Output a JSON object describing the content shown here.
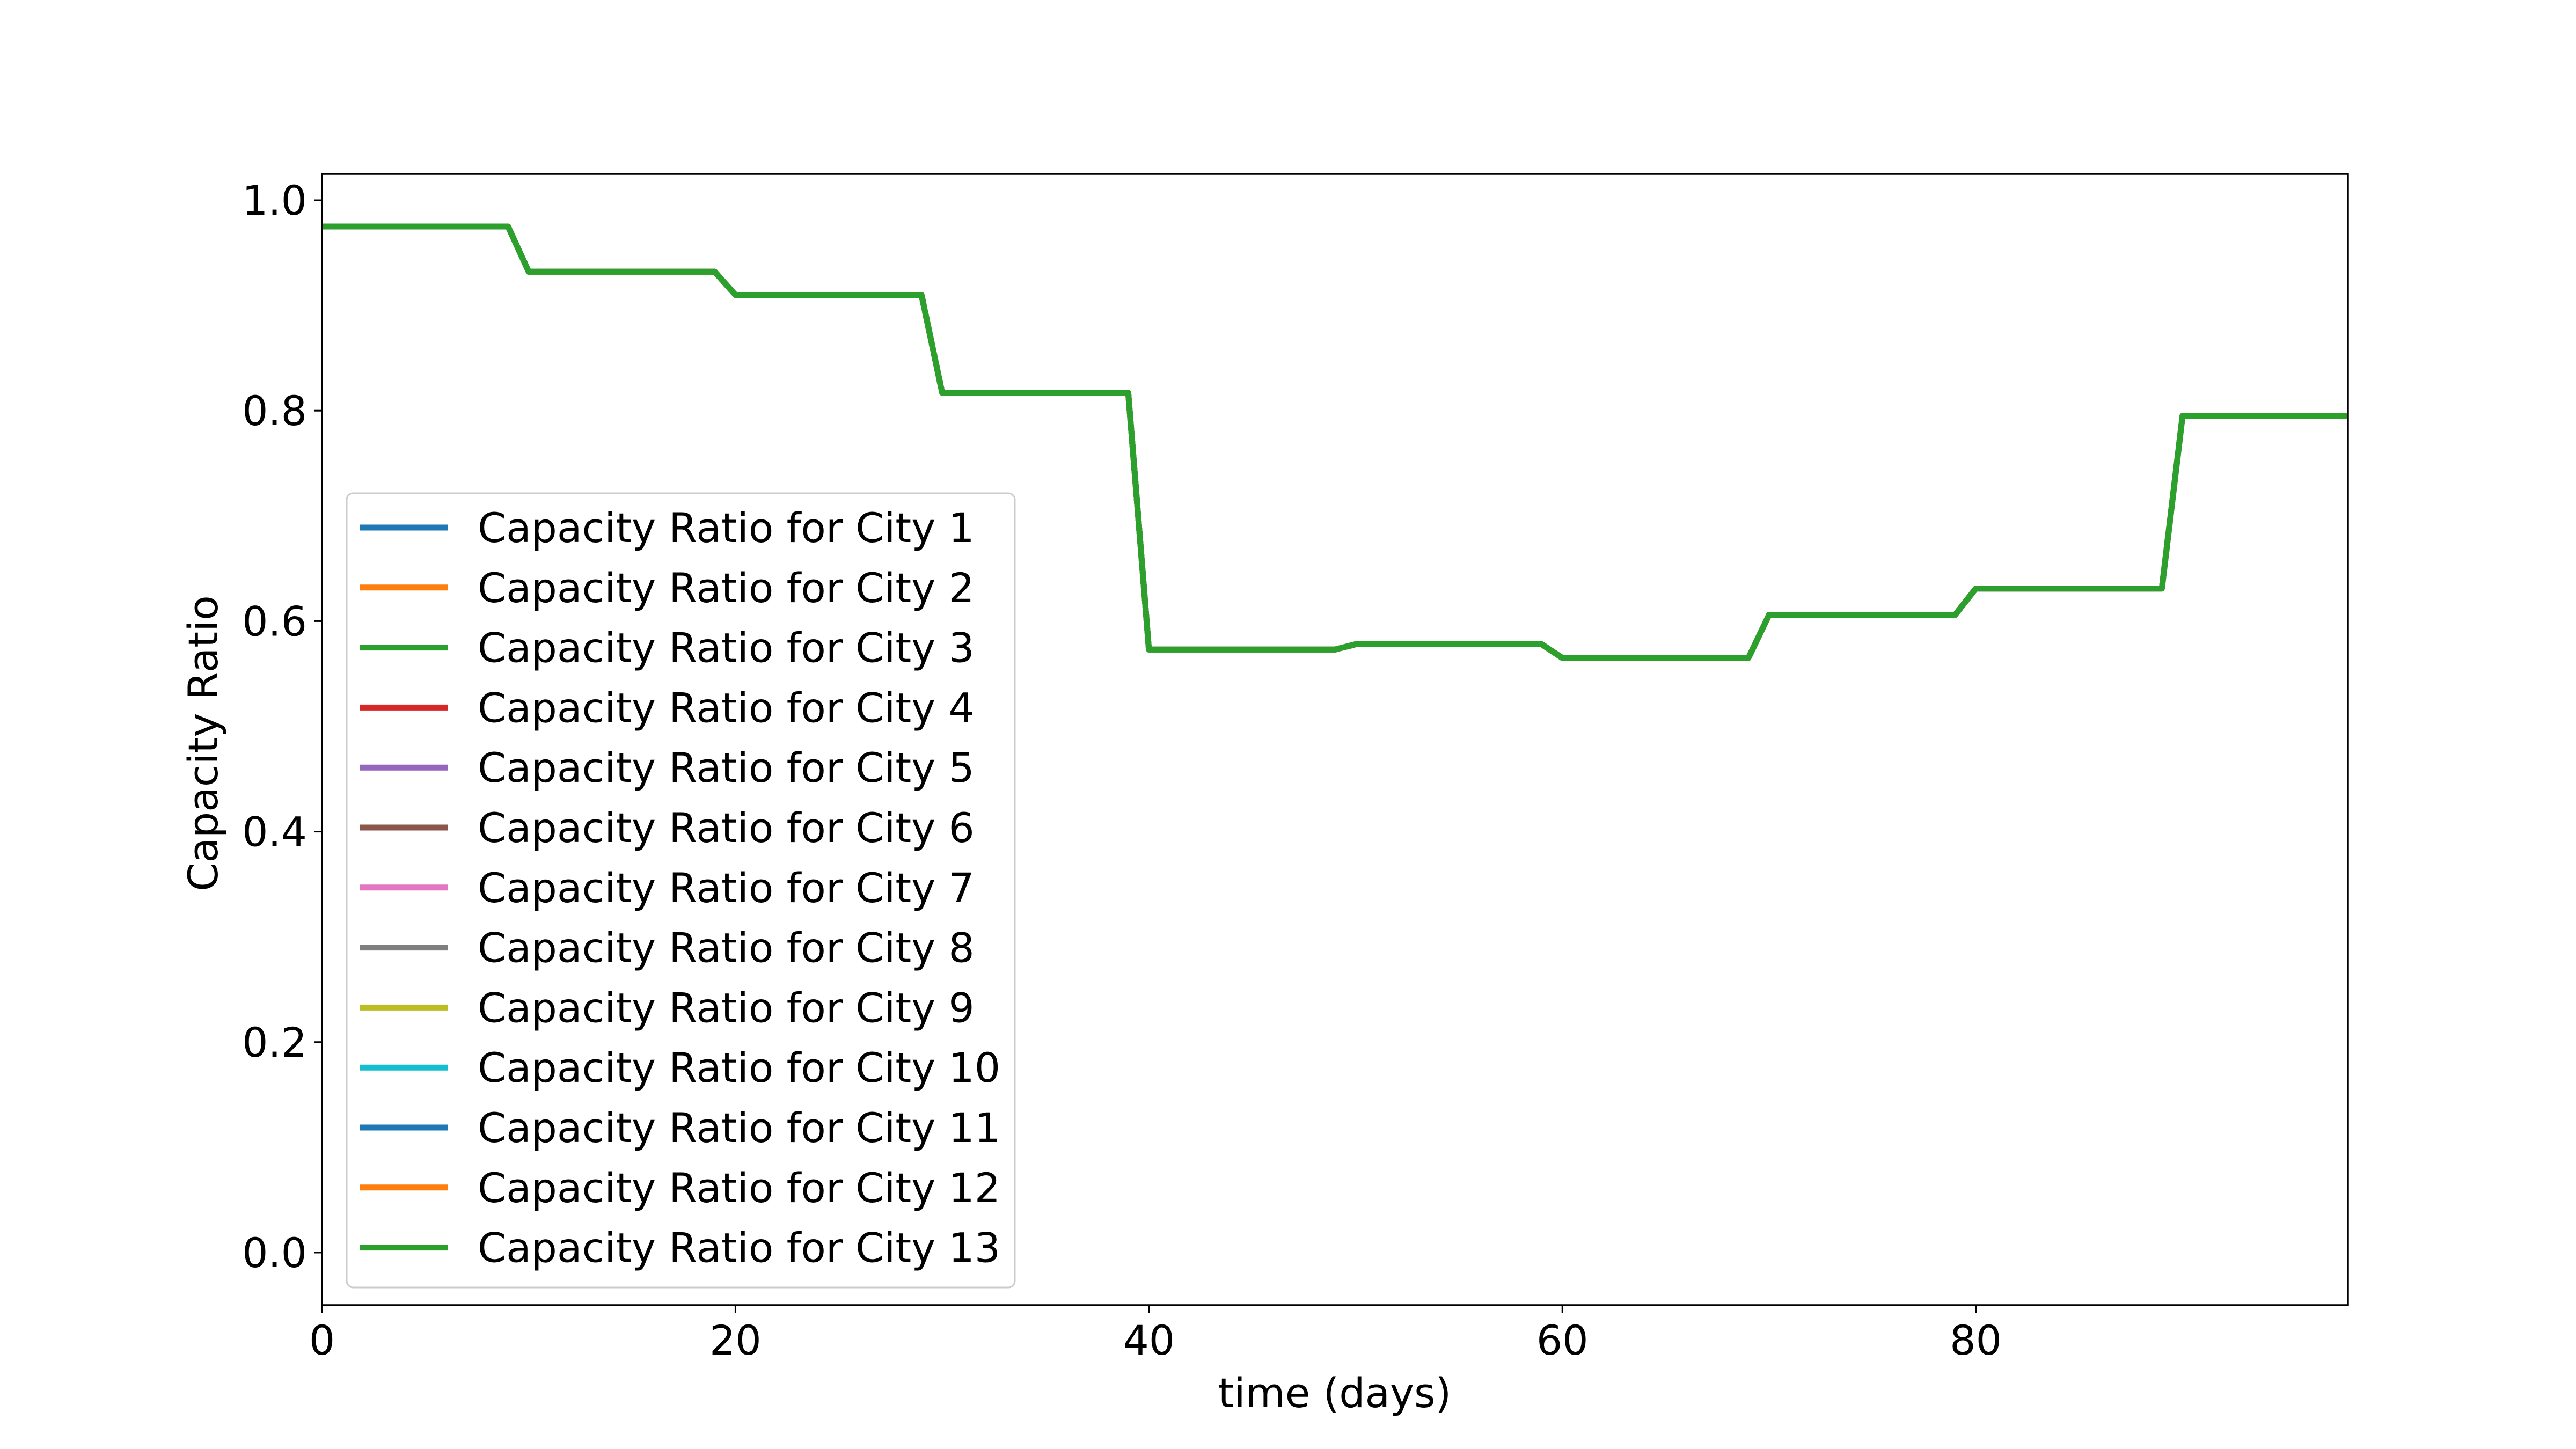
{
  "chart_data": {
    "type": "line",
    "title": "",
    "xlabel": "time (days)",
    "ylabel": "Capacity Ratio",
    "xlim": [
      0,
      98
    ],
    "ylim": [
      -0.05,
      1.025
    ],
    "xticks": [
      0,
      20,
      40,
      60,
      80
    ],
    "yticks": [
      0.0,
      0.2,
      0.4,
      0.6,
      0.8,
      1.0
    ],
    "xtick_labels": [
      "0",
      "20",
      "40",
      "60",
      "80"
    ],
    "ytick_labels": [
      "0.0",
      "0.2",
      "0.4",
      "0.6",
      "0.8",
      "1.0"
    ],
    "grid": false,
    "legend_position": "center-left",
    "x": [
      0,
      9,
      10,
      19,
      20,
      29,
      30,
      39,
      40,
      49,
      50,
      59,
      60,
      69,
      70,
      79,
      80,
      89,
      90,
      98
    ],
    "series_values": [
      0.975,
      0.975,
      0.932,
      0.932,
      0.91,
      0.91,
      0.817,
      0.817,
      0.573,
      0.573,
      0.578,
      0.578,
      0.565,
      0.565,
      0.606,
      0.606,
      0.631,
      0.631,
      0.795,
      0.795
    ],
    "series": [
      {
        "name": "Capacity Ratio for City 1",
        "color": "#1f77b4"
      },
      {
        "name": "Capacity Ratio for City 2",
        "color": "#ff7f0e"
      },
      {
        "name": "Capacity Ratio for City 3",
        "color": "#2ca02c"
      },
      {
        "name": "Capacity Ratio for City 4",
        "color": "#d62728"
      },
      {
        "name": "Capacity Ratio for City 5",
        "color": "#9467bd"
      },
      {
        "name": "Capacity Ratio for City 6",
        "color": "#8c564b"
      },
      {
        "name": "Capacity Ratio for City 7",
        "color": "#e377c2"
      },
      {
        "name": "Capacity Ratio for City 8",
        "color": "#7f7f7f"
      },
      {
        "name": "Capacity Ratio for City 9",
        "color": "#bcbd22"
      },
      {
        "name": "Capacity Ratio for City 10",
        "color": "#17becf"
      },
      {
        "name": "Capacity Ratio for City 11",
        "color": "#1f77b4"
      },
      {
        "name": "Capacity Ratio for City 12",
        "color": "#ff7f0e"
      },
      {
        "name": "Capacity Ratio for City 13",
        "color": "#2ca02c"
      }
    ]
  }
}
